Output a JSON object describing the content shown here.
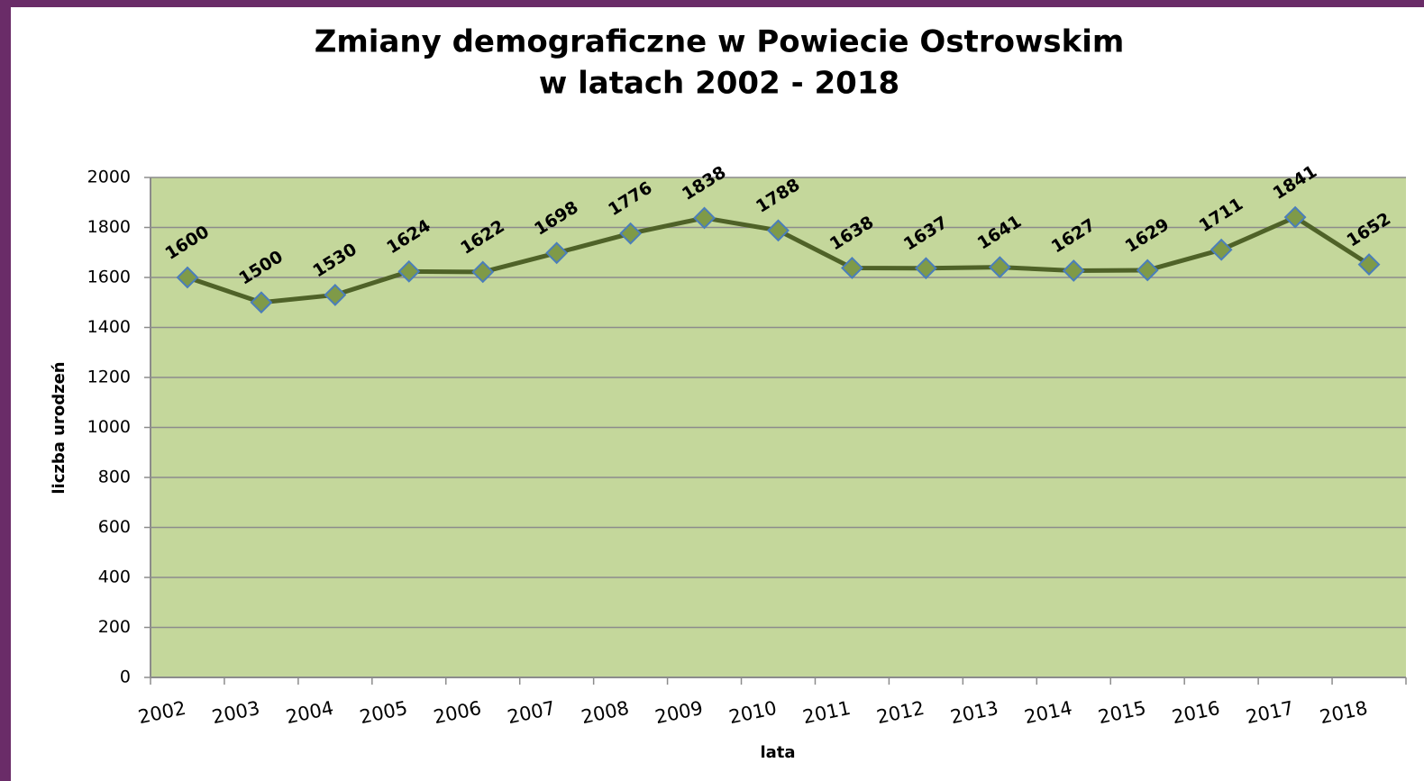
{
  "chart_data": {
    "type": "line",
    "title": [
      "Zmiany demograficzne w Powiecie Ostrowskim",
      "w latach 2002 - 2018"
    ],
    "x_label": "lata",
    "y_label": "liczba urodzeń",
    "categories": [
      "2002",
      "2003",
      "2004",
      "2005",
      "2006",
      "2007",
      "2008",
      "2009",
      "2010",
      "2011",
      "2012",
      "2013",
      "2014",
      "2015",
      "2016",
      "2017",
      "2018"
    ],
    "series": [
      {
        "name": "liczba urodzeń",
        "color": "#4f6228",
        "values": [
          1600,
          1500,
          1530,
          1624,
          1622,
          1698,
          1776,
          1838,
          1788,
          1638,
          1637,
          1641,
          1627,
          1629,
          1711,
          1841,
          1652
        ]
      }
    ],
    "ylim": [
      0,
      2000
    ],
    "yticks": [
      0,
      200,
      400,
      600,
      800,
      1000,
      1200,
      1400,
      1600,
      1800,
      2000
    ],
    "grid": true
  }
}
